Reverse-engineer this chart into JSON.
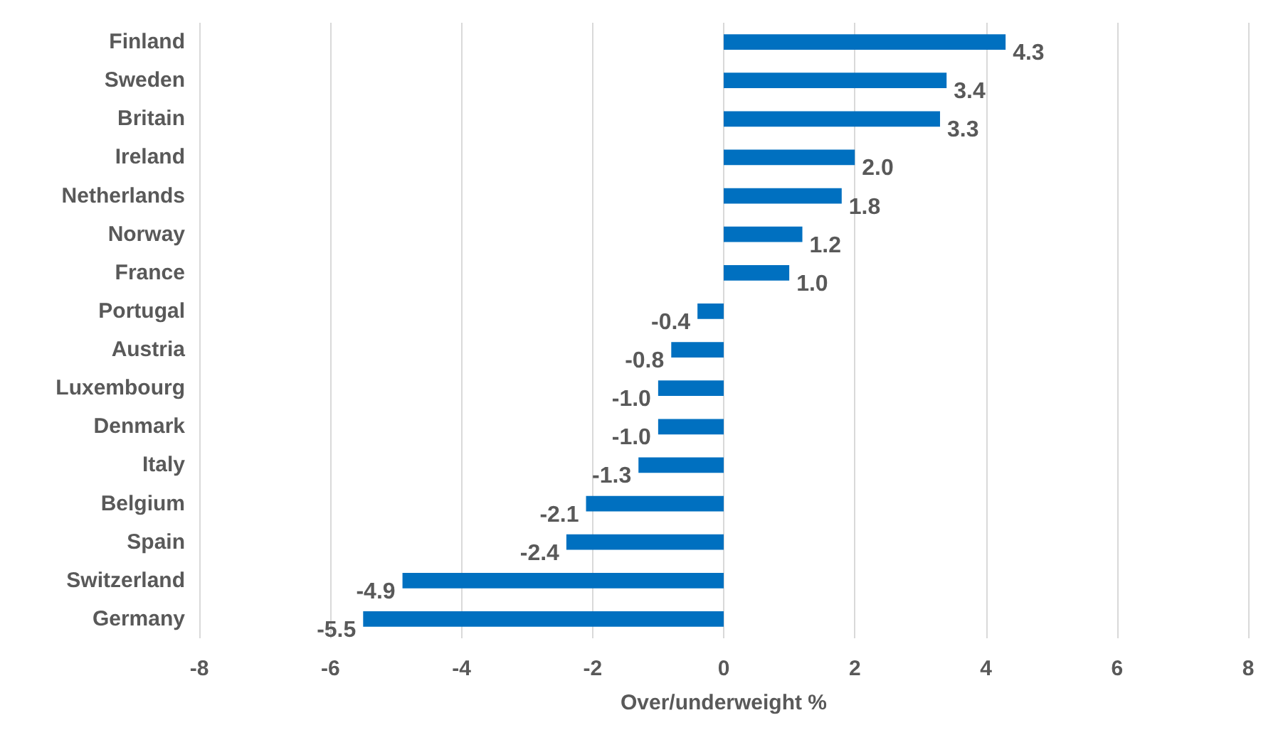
{
  "chart_data": {
    "type": "bar",
    "orientation": "horizontal",
    "xlabel": "Over/underweight %",
    "categories": [
      "Finland",
      "Sweden",
      "Britain",
      "Ireland",
      "Netherlands",
      "Norway",
      "France",
      "Portugal",
      "Austria",
      "Luxembourg",
      "Denmark",
      "Italy",
      "Belgium",
      "Spain",
      "Switzerland",
      "Germany"
    ],
    "values": [
      4.3,
      3.4,
      3.3,
      2.0,
      1.8,
      1.2,
      1.0,
      -0.4,
      -0.8,
      -1.0,
      -1.0,
      -1.3,
      -2.1,
      -2.4,
      -4.9,
      -5.5
    ],
    "value_labels": [
      "4.3",
      "3.4",
      "3.3",
      "2.0",
      "1.8",
      "1.2",
      "1.0",
      "-0.4",
      "-0.8",
      "-1.0",
      "-1.0",
      "-1.3",
      "-2.1",
      "-2.4",
      "-4.9",
      "-5.5"
    ],
    "color": "#0070c0",
    "xlim": [
      -8,
      8
    ],
    "xticks": [
      -8,
      -6,
      -4,
      -2,
      0,
      2,
      4,
      6,
      8
    ],
    "grid": "x"
  }
}
